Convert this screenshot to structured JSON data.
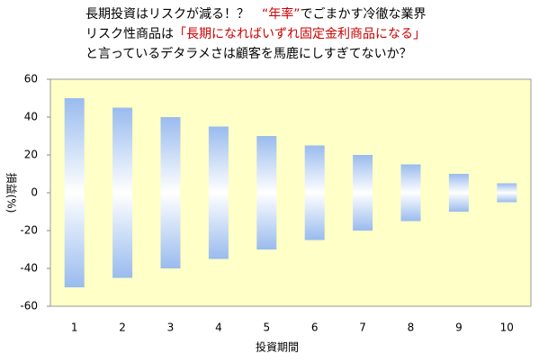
{
  "chart_data": {
    "type": "range_bar",
    "title_lines": [
      [
        {
          "text": "長期投資はリスクが減る！？　",
          "color": "#000000"
        },
        {
          "text": "“年率”",
          "color": "#cc0000"
        },
        {
          "text": "でごまかす冷徹な業界",
          "color": "#000000"
        }
      ],
      [
        {
          "text": "リスク性商品は",
          "color": "#000000"
        },
        {
          "text": "「長期になればいずれ固定金利商品になる」",
          "color": "#cc0000"
        }
      ],
      [
        {
          "text": "と言っているデタラメさは顧客を馬鹿にしすぎてないか？",
          "color": "#000000"
        }
      ]
    ],
    "x_label": "投資期間",
    "y_label": "損益(%)",
    "categories": [
      "1",
      "2",
      "3",
      "4",
      "5",
      "6",
      "7",
      "8",
      "9",
      "10"
    ],
    "low": [
      -50,
      -45,
      -40,
      -35,
      -30,
      -25,
      -20,
      -15,
      -10,
      -5
    ],
    "high": [
      50,
      45,
      40,
      35,
      30,
      25,
      20,
      15,
      10,
      5
    ],
    "color": "#99bbee",
    "plot_background": "#ffffc8",
    "ylim": [
      -60,
      60
    ],
    "yticks": [
      -60,
      -40,
      -20,
      0,
      20,
      40,
      60
    ]
  }
}
